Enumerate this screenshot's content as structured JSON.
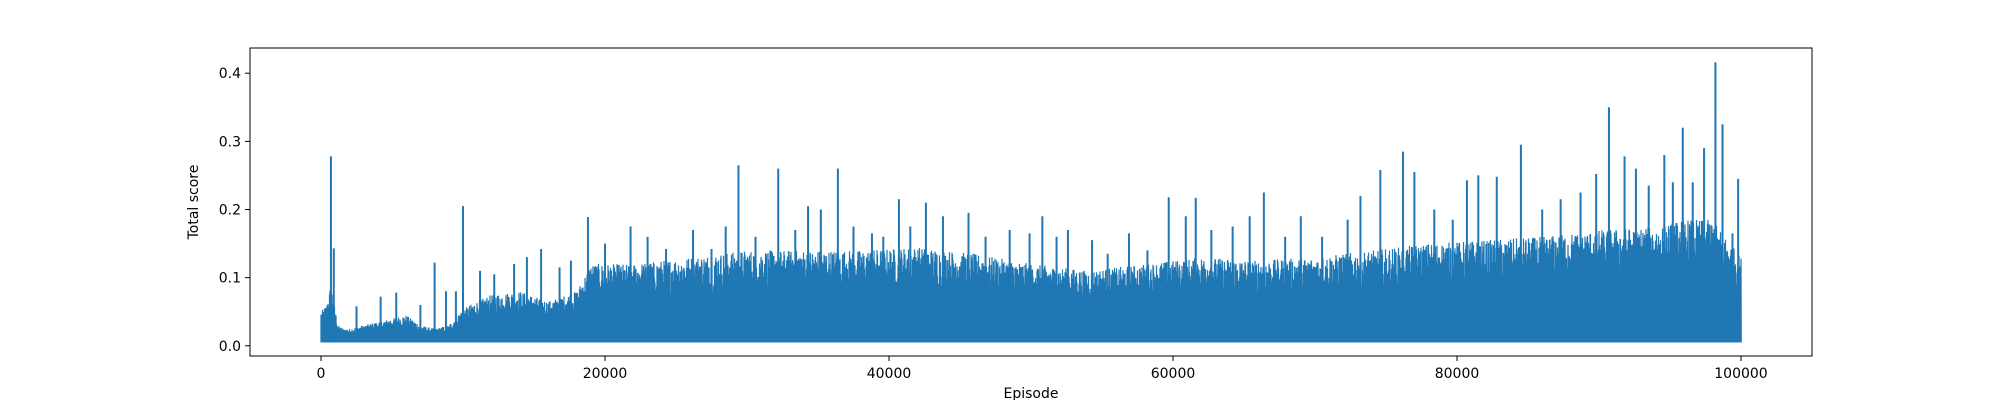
{
  "chart_data": {
    "type": "line",
    "title": "",
    "xlabel": "Episode",
    "ylabel": "Total score",
    "xlim": [
      -5000,
      105000
    ],
    "ylim": [
      -0.015,
      0.437
    ],
    "x_ticks": [
      0,
      20000,
      40000,
      60000,
      80000,
      100000
    ],
    "x_tick_labels": [
      "0",
      "20000",
      "40000",
      "60000",
      "80000",
      "100000"
    ],
    "y_ticks": [
      0.0,
      0.1,
      0.2,
      0.3,
      0.4
    ],
    "y_tick_labels": [
      "0.0",
      "0.1",
      "0.2",
      "0.3",
      "0.4"
    ],
    "grid": false,
    "legend": "none",
    "line_color": "#1f77b4",
    "series": [
      {
        "baseline": 0.005,
        "x": [
          0,
          200,
          400,
          700,
          900,
          1200,
          1600,
          2000,
          3000,
          4000,
          5000,
          6000,
          7000,
          8000,
          9000,
          9800,
          10500,
          12000,
          14000,
          16000,
          18000,
          19000,
          22000,
          26000,
          30000,
          34000,
          38000,
          42000,
          46000,
          50000,
          54000,
          58000,
          62000,
          66000,
          70000,
          74000,
          78000,
          82000,
          86000,
          90000,
          94000,
          96000,
          98000,
          100000
        ],
        "y_envelope": [
          0.05,
          0.055,
          0.06,
          0.09,
          0.065,
          0.03,
          0.025,
          0.025,
          0.03,
          0.035,
          0.04,
          0.045,
          0.03,
          0.025,
          0.03,
          0.05,
          0.06,
          0.075,
          0.08,
          0.065,
          0.08,
          0.12,
          0.12,
          0.13,
          0.14,
          0.14,
          0.14,
          0.145,
          0.135,
          0.12,
          0.11,
          0.12,
          0.13,
          0.125,
          0.13,
          0.14,
          0.15,
          0.155,
          0.16,
          0.17,
          0.175,
          0.185,
          0.185,
          0.13
        ],
        "spikes": [
          {
            "x": 700,
            "y": 0.278
          },
          {
            "x": 900,
            "y": 0.143
          },
          {
            "x": 2500,
            "y": 0.058
          },
          {
            "x": 4200,
            "y": 0.072
          },
          {
            "x": 5300,
            "y": 0.078
          },
          {
            "x": 7000,
            "y": 0.06
          },
          {
            "x": 8000,
            "y": 0.122
          },
          {
            "x": 8800,
            "y": 0.08
          },
          {
            "x": 9500,
            "y": 0.08
          },
          {
            "x": 10000,
            "y": 0.205
          },
          {
            "x": 11200,
            "y": 0.11
          },
          {
            "x": 12200,
            "y": 0.105
          },
          {
            "x": 13600,
            "y": 0.12
          },
          {
            "x": 14500,
            "y": 0.13
          },
          {
            "x": 15500,
            "y": 0.142
          },
          {
            "x": 16800,
            "y": 0.115
          },
          {
            "x": 17600,
            "y": 0.125
          },
          {
            "x": 18800,
            "y": 0.189
          },
          {
            "x": 20000,
            "y": 0.15
          },
          {
            "x": 21800,
            "y": 0.175
          },
          {
            "x": 23000,
            "y": 0.16
          },
          {
            "x": 24300,
            "y": 0.142
          },
          {
            "x": 26200,
            "y": 0.17
          },
          {
            "x": 27500,
            "y": 0.142
          },
          {
            "x": 28500,
            "y": 0.175
          },
          {
            "x": 29400,
            "y": 0.265
          },
          {
            "x": 30600,
            "y": 0.16
          },
          {
            "x": 32200,
            "y": 0.26
          },
          {
            "x": 33400,
            "y": 0.17
          },
          {
            "x": 34300,
            "y": 0.205
          },
          {
            "x": 35200,
            "y": 0.2
          },
          {
            "x": 36400,
            "y": 0.26
          },
          {
            "x": 37500,
            "y": 0.175
          },
          {
            "x": 38800,
            "y": 0.165
          },
          {
            "x": 39600,
            "y": 0.16
          },
          {
            "x": 40700,
            "y": 0.215
          },
          {
            "x": 41500,
            "y": 0.175
          },
          {
            "x": 42600,
            "y": 0.21
          },
          {
            "x": 43800,
            "y": 0.19
          },
          {
            "x": 45600,
            "y": 0.195
          },
          {
            "x": 46800,
            "y": 0.16
          },
          {
            "x": 48500,
            "y": 0.17
          },
          {
            "x": 49900,
            "y": 0.165
          },
          {
            "x": 50800,
            "y": 0.19
          },
          {
            "x": 51800,
            "y": 0.16
          },
          {
            "x": 52600,
            "y": 0.17
          },
          {
            "x": 54300,
            "y": 0.155
          },
          {
            "x": 55400,
            "y": 0.135
          },
          {
            "x": 56900,
            "y": 0.165
          },
          {
            "x": 58200,
            "y": 0.14
          },
          {
            "x": 59700,
            "y": 0.218
          },
          {
            "x": 60900,
            "y": 0.19
          },
          {
            "x": 61600,
            "y": 0.217
          },
          {
            "x": 62700,
            "y": 0.17
          },
          {
            "x": 64200,
            "y": 0.175
          },
          {
            "x": 65400,
            "y": 0.19
          },
          {
            "x": 66400,
            "y": 0.225
          },
          {
            "x": 67900,
            "y": 0.16
          },
          {
            "x": 69000,
            "y": 0.19
          },
          {
            "x": 70500,
            "y": 0.16
          },
          {
            "x": 72300,
            "y": 0.185
          },
          {
            "x": 73200,
            "y": 0.22
          },
          {
            "x": 74600,
            "y": 0.258
          },
          {
            "x": 76200,
            "y": 0.285
          },
          {
            "x": 77000,
            "y": 0.255
          },
          {
            "x": 78400,
            "y": 0.2
          },
          {
            "x": 79700,
            "y": 0.185
          },
          {
            "x": 80700,
            "y": 0.243
          },
          {
            "x": 81500,
            "y": 0.25
          },
          {
            "x": 82800,
            "y": 0.248
          },
          {
            "x": 84500,
            "y": 0.295
          },
          {
            "x": 86000,
            "y": 0.2
          },
          {
            "x": 87300,
            "y": 0.215
          },
          {
            "x": 88700,
            "y": 0.225
          },
          {
            "x": 89800,
            "y": 0.252
          },
          {
            "x": 90700,
            "y": 0.35
          },
          {
            "x": 91800,
            "y": 0.278
          },
          {
            "x": 92600,
            "y": 0.26
          },
          {
            "x": 93500,
            "y": 0.235
          },
          {
            "x": 94600,
            "y": 0.28
          },
          {
            "x": 95200,
            "y": 0.24
          },
          {
            "x": 95900,
            "y": 0.32
          },
          {
            "x": 96600,
            "y": 0.24
          },
          {
            "x": 97400,
            "y": 0.29
          },
          {
            "x": 98200,
            "y": 0.416
          },
          {
            "x": 98700,
            "y": 0.325
          },
          {
            "x": 99400,
            "y": 0.165
          },
          {
            "x": 99800,
            "y": 0.245
          }
        ]
      }
    ]
  }
}
